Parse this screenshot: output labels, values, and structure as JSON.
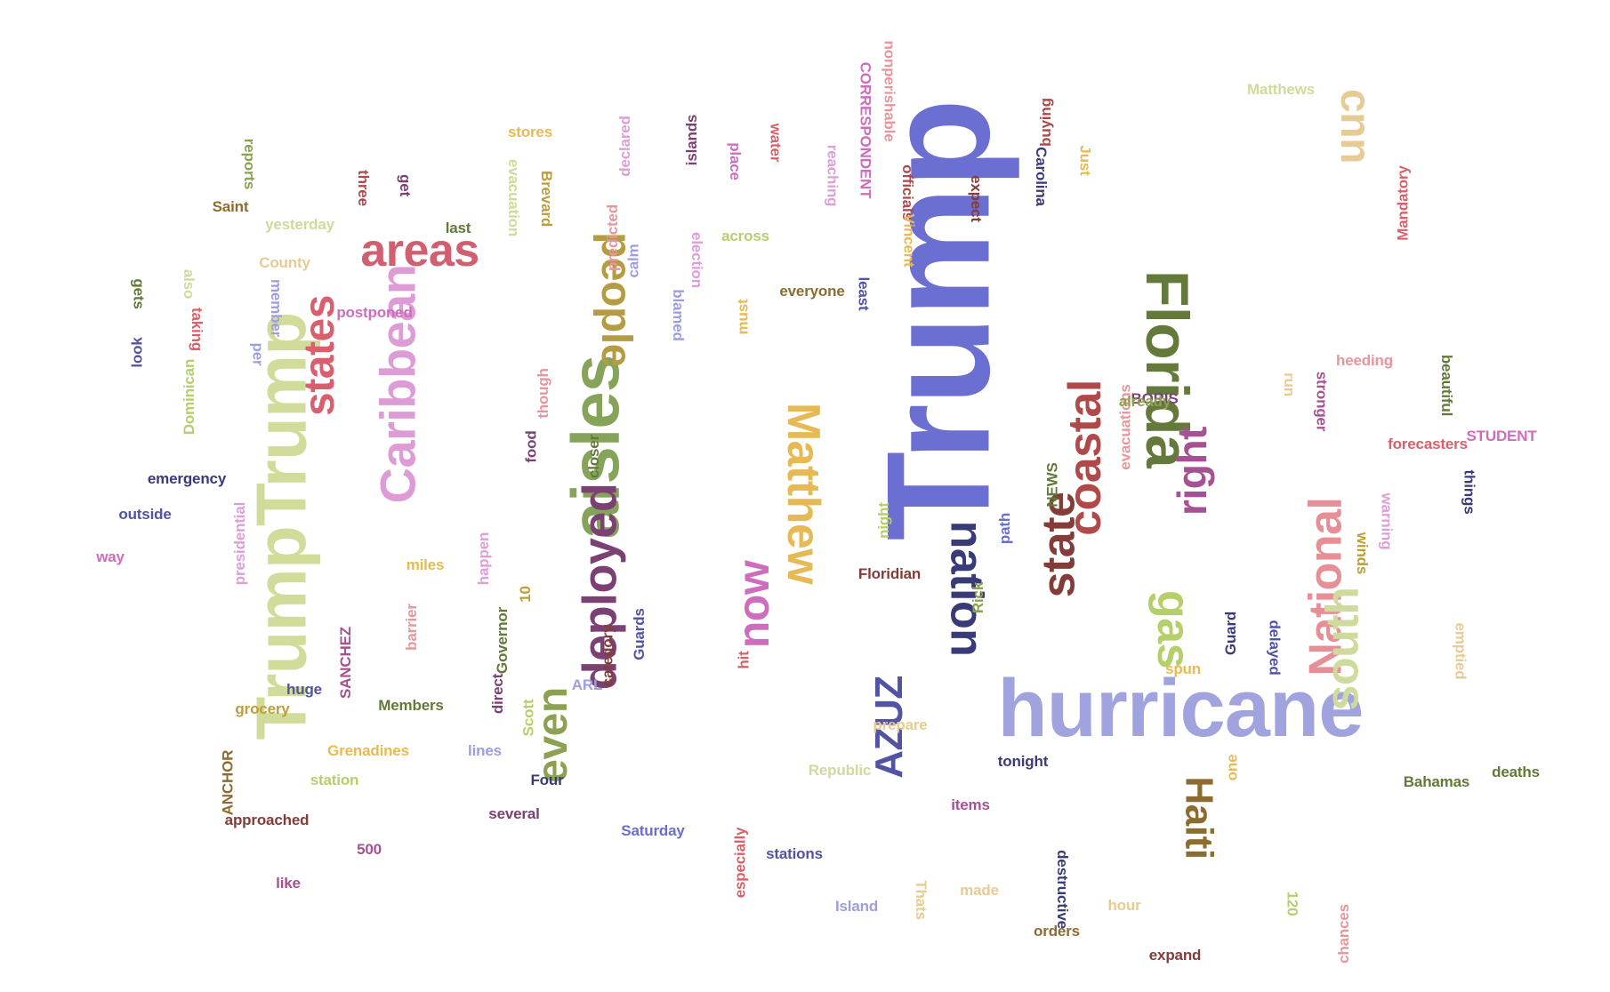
{
  "words": [
    {
      "t": "Trump",
      "c": "#6b6fd1"
    },
    {
      "t": "TrumpTrump",
      "c": "#d2dc9a"
    },
    {
      "t": "hurricane",
      "c": "#a0a3de"
    },
    {
      "t": "aisles",
      "c": "#86a35a"
    },
    {
      "t": "Florida",
      "c": "#637a3b"
    },
    {
      "t": "Matthew",
      "c": "#e6b954"
    },
    {
      "t": "Caribbean",
      "c": "#de9cd6"
    },
    {
      "t": "people",
      "c": "#b59b42"
    },
    {
      "t": "states",
      "c": "#d95f6e"
    },
    {
      "t": "areas",
      "c": "#d06070"
    },
    {
      "t": "deployed",
      "c": "#7b4173"
    },
    {
      "t": "coastal",
      "c": "#b04a4a"
    },
    {
      "t": "National",
      "c": "#e68f96"
    },
    {
      "t": "south",
      "c": "#cedb9c"
    },
    {
      "t": "gas",
      "c": "#b5cf6b"
    },
    {
      "t": "nation",
      "c": "#393b79"
    },
    {
      "t": "state",
      "c": "#843c39"
    },
    {
      "t": "now",
      "c": "#ce6dbd"
    },
    {
      "t": "right",
      "c": "#a55194"
    },
    {
      "t": "even",
      "c": "#8ca252"
    },
    {
      "t": "Haiti",
      "c": "#8c6d31"
    },
    {
      "t": "AZUZ",
      "c": "#5254a3"
    },
    {
      "t": "cnn",
      "c": "#e7cb94"
    },
    {
      "t": "Mandatory",
      "c": "#d6616b"
    },
    {
      "t": "buying",
      "c": "#ad494a"
    },
    {
      "t": "Carolina",
      "c": "#393b79"
    },
    {
      "t": "Just",
      "c": "#e7ba52"
    },
    {
      "t": "expect",
      "c": "#843c39"
    },
    {
      "t": "officials",
      "c": "#ad494a"
    },
    {
      "t": "Vincent",
      "c": "#e7ba52"
    },
    {
      "t": "reaching",
      "c": "#de9ed6"
    },
    {
      "t": "water",
      "c": "#d6616b"
    },
    {
      "t": "place",
      "c": "#ce6dbd"
    },
    {
      "t": "islands",
      "c": "#7b4173"
    },
    {
      "t": "declared",
      "c": "#de9ed6"
    },
    {
      "t": "stores",
      "c": "#e7ba52"
    },
    {
      "t": "Brevard",
      "c": "#bd9e39"
    },
    {
      "t": "evacuation",
      "c": "#cedb9c"
    },
    {
      "t": "nonperishable",
      "c": "#e7969c"
    },
    {
      "t": "CORRESPONDENT",
      "c": "#ce6dbd"
    },
    {
      "t": "reports",
      "c": "#8ca252"
    },
    {
      "t": "three",
      "c": "#ad494a"
    },
    {
      "t": "get",
      "c": "#7b4173"
    },
    {
      "t": "Saint",
      "c": "#8c6d31"
    },
    {
      "t": "yesterday",
      "c": "#cedb9c"
    },
    {
      "t": "last",
      "c": "#637939"
    },
    {
      "t": "County",
      "c": "#e7cb94"
    },
    {
      "t": "predicted",
      "c": "#e7969c"
    },
    {
      "t": "election",
      "c": "#de9ed6"
    },
    {
      "t": "across",
      "c": "#b5cf6b"
    },
    {
      "t": "calm",
      "c": "#9c9ede"
    },
    {
      "t": "blamed",
      "c": "#9c9ede"
    },
    {
      "t": "least",
      "c": "#5254a3"
    },
    {
      "t": "everyone",
      "c": "#8c6d31"
    },
    {
      "t": "must",
      "c": "#e7ba52"
    },
    {
      "t": "gets",
      "c": "#637939"
    },
    {
      "t": "also",
      "c": "#cedb9c"
    },
    {
      "t": "taking",
      "c": "#d6616b"
    },
    {
      "t": "member",
      "c": "#9c9ede"
    },
    {
      "t": "postponed",
      "c": "#ce6dbd"
    },
    {
      "t": "look",
      "c": "#5254a3"
    },
    {
      "t": "per",
      "c": "#9c9ede"
    },
    {
      "t": "Dominican",
      "c": "#b5cf6b"
    },
    {
      "t": "emergency",
      "c": "#393b79"
    },
    {
      "t": "outside",
      "c": "#5254a3"
    },
    {
      "t": "way",
      "c": "#ce6dbd"
    },
    {
      "t": "presidential",
      "c": "#de9ed6"
    },
    {
      "t": "miles",
      "c": "#e7ba52"
    },
    {
      "t": "though",
      "c": "#e7969c"
    },
    {
      "t": "food",
      "c": "#7b4173"
    },
    {
      "t": "closer",
      "c": "#637939"
    },
    {
      "t": "happen",
      "c": "#de9ed6"
    },
    {
      "t": "10",
      "c": "#bd9e39"
    },
    {
      "t": "SANCHEZ",
      "c": "#a55194"
    },
    {
      "t": "barrier",
      "c": "#e7969c"
    },
    {
      "t": "huge",
      "c": "#5254a3"
    },
    {
      "t": "grocery",
      "c": "#bd9e39"
    },
    {
      "t": "Members",
      "c": "#637939"
    },
    {
      "t": "Governor",
      "c": "#637939"
    },
    {
      "t": "direct",
      "c": "#7b4173"
    },
    {
      "t": "category",
      "c": "#843c39"
    },
    {
      "t": "Guards",
      "c": "#5254a3"
    },
    {
      "t": "hit",
      "c": "#d6616b"
    },
    {
      "t": "ARL",
      "c": "#9c9ede"
    },
    {
      "t": "Scott",
      "c": "#b5cf6b"
    },
    {
      "t": "Grenadines",
      "c": "#e7ba52"
    },
    {
      "t": "lines",
      "c": "#9c9ede"
    },
    {
      "t": "station",
      "c": "#b5cf6b"
    },
    {
      "t": "ANCHOR",
      "c": "#8c6d31"
    },
    {
      "t": "approached",
      "c": "#843c39"
    },
    {
      "t": "Four",
      "c": "#393b79"
    },
    {
      "t": "several",
      "c": "#7b4173"
    },
    {
      "t": "500",
      "c": "#a55194"
    },
    {
      "t": "like",
      "c": "#a55194"
    },
    {
      "t": "Saturday",
      "c": "#6b6ecf"
    },
    {
      "t": "especially",
      "c": "#d6616b"
    },
    {
      "t": "stations",
      "c": "#5254a3"
    },
    {
      "t": "Island",
      "c": "#9c9ede"
    },
    {
      "t": "Thats",
      "c": "#e7cb94"
    },
    {
      "t": "made",
      "c": "#e7cb94"
    },
    {
      "t": "destructive",
      "c": "#393b79"
    },
    {
      "t": "orders",
      "c": "#8c6d31"
    },
    {
      "t": "hour",
      "c": "#e7cb94"
    },
    {
      "t": "expand",
      "c": "#843c39"
    },
    {
      "t": "120",
      "c": "#b5cf6b"
    },
    {
      "t": "chances",
      "c": "#e7969c"
    },
    {
      "t": "items",
      "c": "#a55194"
    },
    {
      "t": "tonight",
      "c": "#393b79"
    },
    {
      "t": "Republic",
      "c": "#cedb9c"
    },
    {
      "t": "prepare",
      "c": "#e7cb94"
    },
    {
      "t": "one",
      "c": "#e7ba52"
    },
    {
      "t": "spun",
      "c": "#e7ba52"
    },
    {
      "t": "Floridian",
      "c": "#843c39"
    },
    {
      "t": "night",
      "c": "#b5cf6b"
    },
    {
      "t": "Rick",
      "c": "#8ca252"
    },
    {
      "t": "path",
      "c": "#6b6ecf"
    },
    {
      "t": "NEWS",
      "c": "#637939"
    },
    {
      "t": "evacuations",
      "c": "#e7969c"
    },
    {
      "t": "BORIS",
      "c": "#7b4173"
    },
    {
      "t": "already",
      "c": "#8ca252"
    },
    {
      "t": "Guard",
      "c": "#393b79"
    },
    {
      "t": "delayed",
      "c": "#5254a3"
    },
    {
      "t": "winds",
      "c": "#bd9e39"
    },
    {
      "t": "warning",
      "c": "#de9ed6"
    },
    {
      "t": "things",
      "c": "#393b79"
    },
    {
      "t": "emptied",
      "c": "#e7cb94"
    },
    {
      "t": "Bahamas",
      "c": "#637939"
    },
    {
      "t": "deaths",
      "c": "#637939"
    },
    {
      "t": "forecasters",
      "c": "#d6616b"
    },
    {
      "t": "STUDENT",
      "c": "#ce6dbd"
    },
    {
      "t": "beautiful",
      "c": "#637939"
    },
    {
      "t": "heeding",
      "c": "#e7969c"
    },
    {
      "t": "stronger",
      "c": "#a55194"
    },
    {
      "t": "run",
      "c": "#e7cb94"
    },
    {
      "t": "Matthews",
      "c": "#cedb9c"
    }
  ]
}
